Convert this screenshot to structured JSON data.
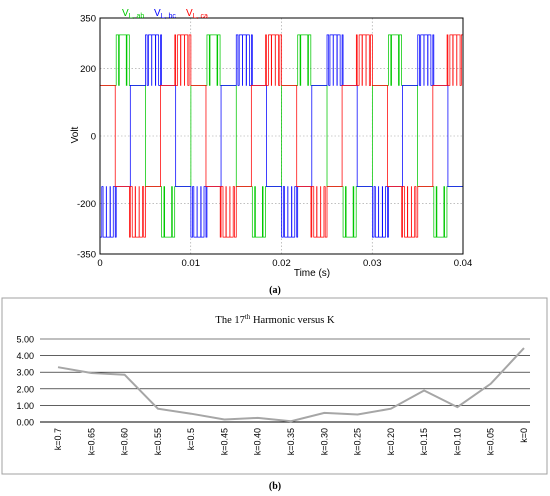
{
  "caption_a": "(a)",
  "caption_b": "(b)",
  "chart_data": [
    {
      "type": "line",
      "ylabel": "Volt",
      "xlabel": "Time (s)",
      "xlim": [
        0,
        0.04
      ],
      "ylim": [
        -350,
        350
      ],
      "x_ticks": [
        "0",
        "0.01",
        "0.02",
        "0.03",
        "0.04"
      ],
      "y_ticks": [
        "350",
        "200",
        "0",
        "-200",
        "-350"
      ],
      "grid": true,
      "legend_position": "top-left",
      "levels_V": [
        300,
        150,
        -150,
        -300
      ],
      "period_s": 0.01,
      "series": [
        {
          "name": "V",
          "subscript": "L, ab",
          "color": "#00c800",
          "phase_deg": 0
        },
        {
          "name": "V",
          "subscript": "L, bc",
          "color": "#0000ff",
          "phase_deg": -120
        },
        {
          "name": "V",
          "subscript": "L, ca",
          "color": "#ff0000",
          "phase_deg": 120
        }
      ]
    },
    {
      "type": "line",
      "title": "The 17",
      "title_sup": "th",
      "title_rest": " Harmonic versus K",
      "categories": [
        "k=0.7",
        "k=0.65",
        "k=0.60",
        "k=0.55",
        "k=0.5",
        "k=0.45",
        "k=0.40",
        "k=0.35",
        "k=0.30",
        "k=0.25",
        "k=0.20",
        "k=0.15",
        "k=0.10",
        "k=0.05",
        "k=0"
      ],
      "values": [
        3.3,
        2.95,
        2.85,
        0.8,
        0.5,
        0.15,
        0.25,
        0.05,
        0.55,
        0.45,
        0.8,
        1.9,
        0.9,
        2.3,
        4.45
      ],
      "ylim": [
        0,
        5
      ],
      "y_ticks": [
        "0.00",
        "1.00",
        "2.00",
        "3.00",
        "4.00",
        "5.00"
      ],
      "line_color": "#a6a6a6",
      "grid": true
    }
  ]
}
